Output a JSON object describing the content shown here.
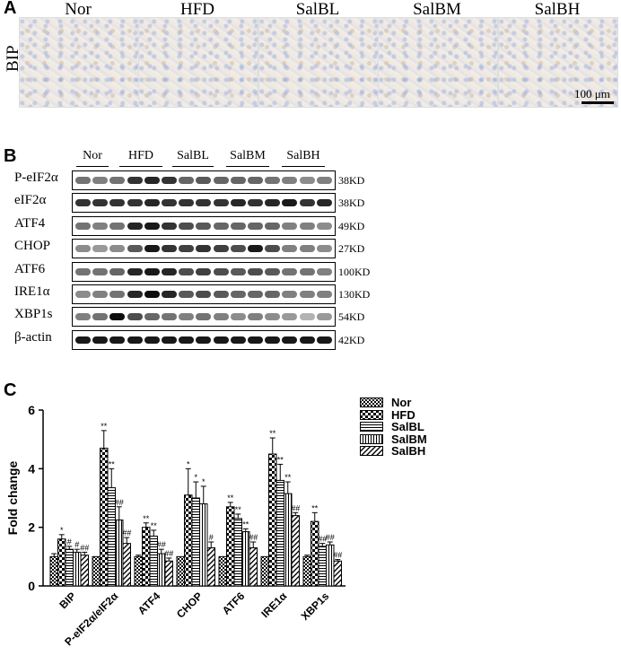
{
  "panelA": {
    "letter": "A",
    "row_label": "BIP",
    "groups": [
      "Nor",
      "HFD",
      "SalBL",
      "SalBM",
      "SalBH"
    ],
    "scale_bar": "100 μm"
  },
  "panelB": {
    "letter": "B",
    "groups": [
      "Nor",
      "HFD",
      "SalBL",
      "SalBM",
      "SalBH"
    ],
    "blots": [
      {
        "protein": "P-eIF2α",
        "kd": "38KD",
        "intensity": [
          0.55,
          0.5,
          0.55,
          0.8,
          0.85,
          0.8,
          0.6,
          0.65,
          0.6,
          0.6,
          0.6,
          0.55,
          0.5,
          0.45,
          0.5
        ]
      },
      {
        "protein": "eIF2α",
        "kd": "38KD",
        "intensity": [
          0.8,
          0.8,
          0.8,
          0.8,
          0.85,
          0.8,
          0.8,
          0.8,
          0.8,
          0.85,
          0.8,
          0.85,
          0.9,
          0.8,
          0.85
        ]
      },
      {
        "protein": "ATF4",
        "kd": "49KD",
        "intensity": [
          0.55,
          0.5,
          0.55,
          0.85,
          0.9,
          0.8,
          0.7,
          0.65,
          0.6,
          0.6,
          0.6,
          0.6,
          0.5,
          0.5,
          0.45
        ]
      },
      {
        "protein": "CHOP",
        "kd": "27KD",
        "intensity": [
          0.45,
          0.4,
          0.45,
          0.65,
          0.9,
          0.8,
          0.75,
          0.8,
          0.75,
          0.7,
          0.9,
          0.7,
          0.5,
          0.5,
          0.45
        ]
      },
      {
        "protein": "ATF6",
        "kd": "100KD",
        "intensity": [
          0.55,
          0.55,
          0.6,
          0.85,
          0.9,
          0.85,
          0.7,
          0.75,
          0.7,
          0.65,
          0.7,
          0.65,
          0.55,
          0.55,
          0.5
        ]
      },
      {
        "protein": "IRE1α",
        "kd": "130KD",
        "intensity": [
          0.45,
          0.5,
          0.55,
          0.85,
          0.95,
          0.85,
          0.65,
          0.7,
          0.65,
          0.6,
          0.6,
          0.6,
          0.5,
          0.5,
          0.5
        ]
      },
      {
        "protein": "XBP1s",
        "kd": "54KD",
        "intensity": [
          0.5,
          0.55,
          0.95,
          0.7,
          0.6,
          0.55,
          0.5,
          0.55,
          0.5,
          0.45,
          0.5,
          0.45,
          0.4,
          0.3,
          0.4
        ]
      },
      {
        "protein": "β-actin",
        "kd": "42KD",
        "intensity": [
          0.9,
          0.9,
          0.9,
          0.9,
          0.9,
          0.9,
          0.9,
          0.9,
          0.9,
          0.9,
          0.9,
          0.9,
          0.9,
          0.9,
          0.9
        ]
      }
    ]
  },
  "chart_data": {
    "type": "bar",
    "letter": "C",
    "ylabel": "Fold change",
    "ylim": [
      0,
      6
    ],
    "yticks": [
      0,
      2,
      4,
      6
    ],
    "categories": [
      "BIP",
      "P-eIF2α/eIF2α",
      "ATF4",
      "CHOP",
      "ATF6",
      "IRE1α",
      "XBP1s"
    ],
    "series": [
      {
        "name": "Nor",
        "pattern": "checker",
        "values": [
          1.0,
          1.0,
          1.0,
          1.0,
          1.0,
          1.0,
          1.0
        ],
        "errors": [
          0.1,
          0,
          0.05,
          0,
          0,
          0,
          0.05
        ],
        "marks": [
          "",
          "",
          "",
          "",
          "",
          "",
          ""
        ]
      },
      {
        "name": "HFD",
        "pattern": "checker-lg",
        "values": [
          1.6,
          4.7,
          2.0,
          3.1,
          2.7,
          4.5,
          2.2
        ],
        "errors": [
          0.15,
          0.6,
          0.15,
          0.9,
          0.15,
          0.55,
          0.3
        ],
        "marks": [
          "*",
          "**",
          "**",
          "*",
          "**",
          "**",
          "**"
        ]
      },
      {
        "name": "SalBL",
        "pattern": "hlines",
        "values": [
          1.25,
          3.35,
          1.7,
          3.0,
          2.3,
          3.6,
          1.35
        ],
        "errors": [
          0.1,
          0.65,
          0.2,
          0.55,
          0.15,
          0.55,
          0.1
        ],
        "marks": [
          "#",
          "**",
          "**",
          "*",
          "**",
          "**",
          "##"
        ]
      },
      {
        "name": "SalBM",
        "pattern": "vlines",
        "values": [
          1.15,
          2.25,
          1.1,
          2.8,
          1.85,
          3.15,
          1.4
        ],
        "errors": [
          0.1,
          0.45,
          0.15,
          0.6,
          0.1,
          0.4,
          0.1
        ],
        "marks": [
          "#",
          "##",
          "##",
          "*",
          "**",
          "**",
          "##"
        ]
      },
      {
        "name": "SalBH",
        "pattern": "diag",
        "values": [
          1.05,
          1.45,
          0.85,
          1.3,
          1.3,
          2.4,
          0.85
        ],
        "errors": [
          0.1,
          0.2,
          0.1,
          0.2,
          0.2,
          0.1,
          0.05
        ],
        "marks": [
          "##",
          "##",
          "##",
          "#",
          "##",
          "##",
          "##"
        ]
      }
    ]
  }
}
